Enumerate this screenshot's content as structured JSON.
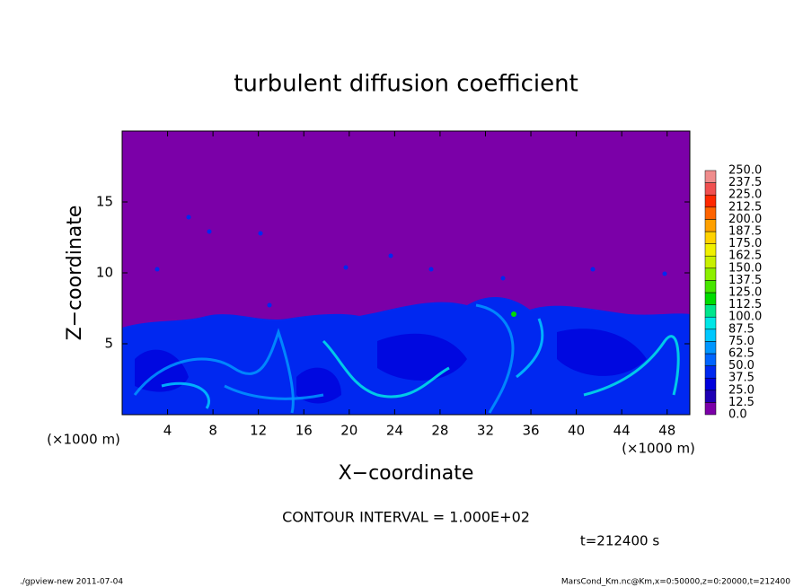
{
  "chart_data": {
    "type": "heatmap",
    "title": "turbulent diffusion coefficient",
    "xlabel": "X−coordinate",
    "ylabel": "Z−coordinate",
    "xunit": "(×1000 m)",
    "yunit": "(×1000 m)",
    "xlim": [
      0,
      50
    ],
    "ylim": [
      0,
      20
    ],
    "xticks": [
      4,
      8,
      12,
      16,
      20,
      24,
      28,
      32,
      36,
      40,
      44,
      48
    ],
    "yticks": [
      5,
      10,
      15
    ],
    "colorbar": {
      "levels": [
        {
          "value": 0,
          "label": "0.0"
        },
        12.5,
        {
          "value": 25,
          "label": "25.0"
        },
        37.5,
        {
          "value": 50,
          "label": "50.0"
        },
        62.5,
        {
          "value": 75,
          "label": "75.0"
        },
        87.5,
        {
          "value": 100,
          "label": "100.0"
        },
        112.5,
        {
          "value": 125,
          "label": "125.0"
        },
        137.5,
        {
          "value": 150,
          "label": "150.0"
        },
        162.5,
        {
          "value": 175,
          "label": "175.0"
        },
        187.5,
        {
          "value": 200,
          "label": "200.0"
        },
        212.5,
        {
          "value": 225,
          "label": "225.0"
        },
        237.5,
        {
          "value": 250,
          "label": "250.0"
        }
      ],
      "colors": [
        "#7b00a8",
        "#1e00b4",
        "#0000dc",
        "#0028f0",
        "#0064ff",
        "#0096ff",
        "#00c8ff",
        "#00e6e6",
        "#00e68c",
        "#00dc00",
        "#46e600",
        "#8cf000",
        "#c8f000",
        "#f0f000",
        "#ffd200",
        "#ffa000",
        "#ff6400",
        "#ff2800",
        "#f05050",
        "#f08c8c"
      ]
    },
    "contour_interval": "CONTOUR INTERVAL = 1.000E+02",
    "time": "t=212400 s",
    "footer_left": "./gpview-new   2011-07-04",
    "footer_right": "MarsCond_Km.nc@Km,x=0:50000,z=0:20000,t=212400"
  }
}
